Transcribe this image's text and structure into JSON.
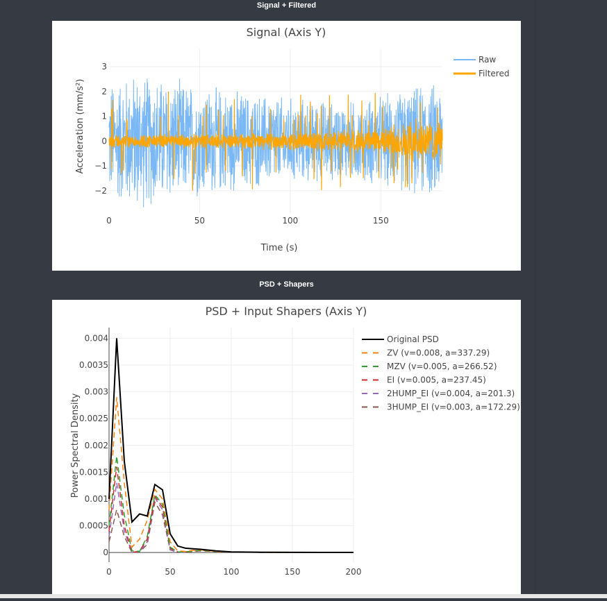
{
  "sections": {
    "signal_title": "Signal + Filtered",
    "psd_title": "PSD + Shapers"
  },
  "chart_data": [
    {
      "type": "line",
      "title": "Signal (Axis Y)",
      "xlabel": "Time (s)",
      "ylabel": "Acceleration (mm/s²)",
      "xlim": [
        0,
        184
      ],
      "ylim": [
        -2.9,
        3.7
      ],
      "xticks": [
        "0",
        "50",
        "100",
        "150"
      ],
      "yticks": [
        "−2",
        "−1",
        "0",
        "1",
        "2",
        "3"
      ],
      "grid": true,
      "legend": "top-right",
      "series": [
        {
          "name": "Raw",
          "color": "#7ab8f5",
          "envelope_t": [
            0,
            15,
            40,
            70,
            100,
            130,
            150,
            170,
            184
          ],
          "envelope_amp": [
            2.6,
            3.0,
            2.6,
            2.2,
            1.9,
            1.7,
            2.0,
            2.4,
            2.6
          ]
        },
        {
          "name": "Filtered",
          "color": "#ffa500",
          "envelope_t": [
            0,
            40,
            80,
            120,
            150,
            165,
            172,
            184
          ],
          "envelope_amp": [
            0.3,
            0.3,
            0.35,
            0.45,
            0.55,
            0.85,
            0.95,
            0.8
          ]
        }
      ]
    },
    {
      "type": "line",
      "title": "PSD + Input Shapers (Axis Y)",
      "xlabel": "",
      "ylabel": "Power Spectral Density",
      "xlim": [
        0,
        200
      ],
      "ylim": [
        -0.00018,
        0.0042
      ],
      "xticks": [
        "0",
        "50",
        "100",
        "150",
        "200"
      ],
      "yticks": [
        "0",
        "0.0005",
        "0.001",
        "0.0015",
        "0.002",
        "0.0025",
        "0.003",
        "0.0035",
        "0.004"
      ],
      "grid": true,
      "legend": "top-right",
      "x": [
        0,
        6.25,
        12.5,
        18.75,
        25,
        31.25,
        37.5,
        43.75,
        50,
        56.25,
        62.5,
        68.75,
        75,
        87.5,
        100,
        125,
        150,
        175,
        200
      ],
      "series": [
        {
          "name": "Original PSD",
          "color": "#000000",
          "dash": "solid",
          "values": [
            0.001,
            0.004,
            0.0017,
            0.00057,
            0.00072,
            0.00068,
            0.00127,
            0.00117,
            0.00035,
            0.00012,
            8e-05,
            7e-05,
            6e-05,
            3e-05,
            1e-05,
            5e-06,
            3e-06,
            2e-06,
            1e-06
          ]
        },
        {
          "name": "ZV (v=0.008, a=337.29)",
          "color": "#ff7f0e",
          "dash": "dash",
          "values": [
            0.0008,
            0.0029,
            0.0013,
            0.0001,
            0.00025,
            0.0006,
            0.00118,
            0.001,
            0.0002,
            3e-05,
            2e-05,
            4e-05,
            5e-05,
            2e-05,
            1e-05,
            4e-06,
            2e-06,
            1e-06,
            1e-06
          ]
        },
        {
          "name": "MZV (v=0.005, a=266.52)",
          "color": "#2ca02c",
          "dash": "dash",
          "values": [
            0.0005,
            0.0018,
            0.0007,
            3e-05,
            2e-05,
            0.0003,
            0.00108,
            0.0009,
            0.0001,
            1e-05,
            1e-05,
            3e-05,
            4e-05,
            2e-05,
            1e-05,
            3e-06,
            2e-06,
            1e-06,
            1e-06
          ]
        },
        {
          "name": "EI (v=0.005, a=237.45)",
          "color": "#d62728",
          "dash": "dash",
          "values": [
            0.0004,
            0.0016,
            0.0005,
            0.0,
            3e-05,
            0.00025,
            0.00105,
            0.00085,
            8e-05,
            1e-05,
            1e-05,
            3e-05,
            4e-05,
            2e-05,
            1e-05,
            3e-06,
            2e-06,
            1e-06,
            1e-06
          ]
        },
        {
          "name": "2HUMP_EI (v=0.004, a=201.3)",
          "color": "#9467bd",
          "dash": "dash",
          "values": [
            0.0003,
            0.0013,
            0.0004,
            0.0,
            2e-05,
            0.0002,
            0.00102,
            0.0008,
            6e-05,
            0.0,
            1e-05,
            3e-05,
            4e-05,
            2e-05,
            1e-05,
            3e-06,
            2e-06,
            1e-06,
            1e-06
          ]
        },
        {
          "name": "3HUMP_EI (v=0.003, a=172.29)",
          "color": "#8c564b",
          "dash": "dash",
          "values": [
            0.0002,
            0.0008,
            0.0003,
            0.0,
            1e-05,
            0.00015,
            0.00094,
            0.0007,
            5e-05,
            0.0,
            1e-05,
            2e-05,
            3e-05,
            2e-05,
            1e-05,
            3e-06,
            2e-06,
            1e-06,
            1e-06
          ]
        }
      ]
    }
  ]
}
